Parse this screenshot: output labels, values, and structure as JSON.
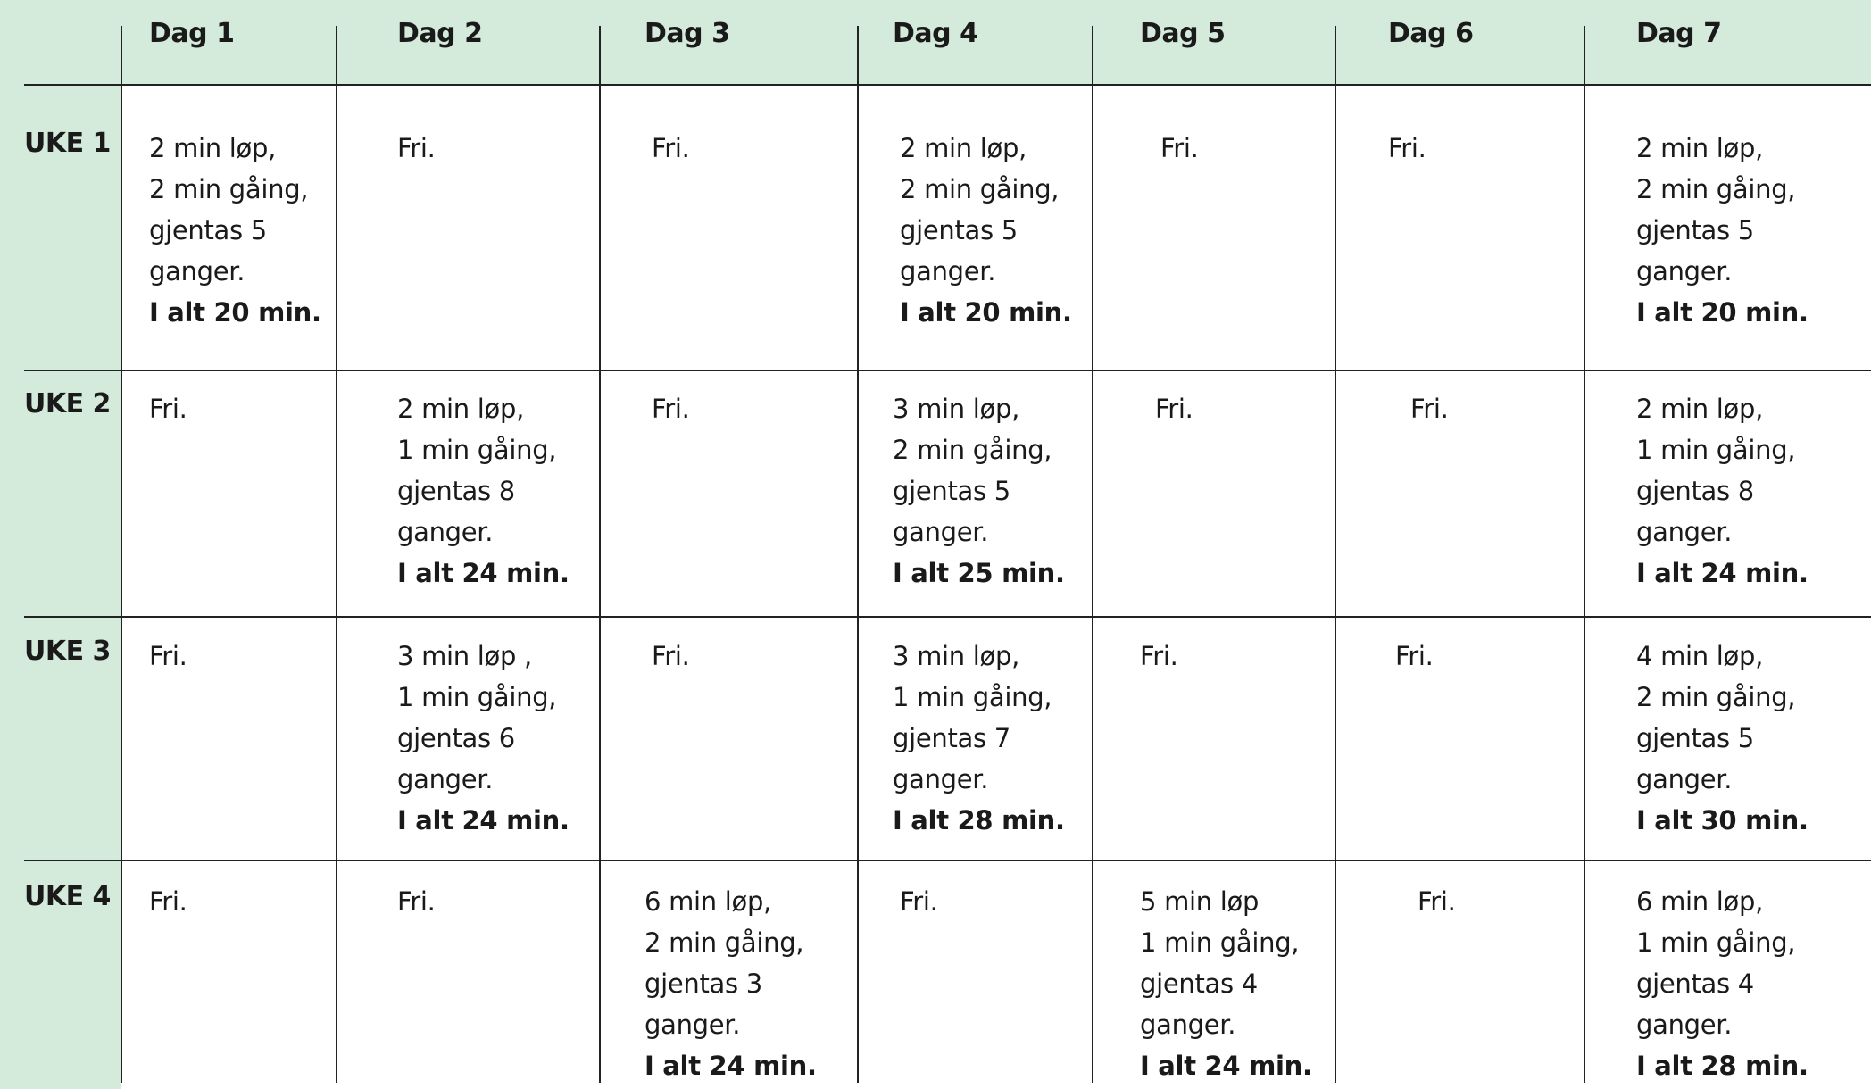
{
  "days": [
    "Dag 1",
    "Dag 2",
    "Dag 3",
    "Dag 4",
    "Dag 5",
    "Dag 6",
    "Dag 7"
  ],
  "weeks": [
    {
      "label": "UKE 1",
      "cells": [
        {
          "lines": [
            "2 min løp,",
            "2 min gåing,",
            "gjentas 5",
            "ganger."
          ],
          "total": "I alt 20 min."
        },
        {
          "lines": [
            "Fri."
          ]
        },
        {
          "lines": [
            "Fri."
          ]
        },
        {
          "lines": [
            "2 min løp,",
            "2 min gåing,",
            "gjentas 5",
            "ganger."
          ],
          "total": "I alt 20 min."
        },
        {
          "lines": [
            "Fri."
          ]
        },
        {
          "lines": [
            "Fri."
          ]
        },
        {
          "lines": [
            "2 min løp,",
            "2 min gåing,",
            "gjentas 5",
            "ganger."
          ],
          "total": "I alt 20 min."
        }
      ]
    },
    {
      "label": "UKE 2",
      "cells": [
        {
          "lines": [
            "Fri."
          ]
        },
        {
          "lines": [
            "2 min løp,",
            "1 min gåing,",
            "gjentas 8",
            "ganger."
          ],
          "total": "I alt 24 min."
        },
        {
          "lines": [
            "Fri."
          ]
        },
        {
          "lines": [
            "3 min løp,",
            "2 min gåing,",
            "gjentas 5",
            "ganger."
          ],
          "total": "I alt 25 min."
        },
        {
          "lines": [
            "Fri."
          ]
        },
        {
          "lines": [
            "Fri."
          ]
        },
        {
          "lines": [
            "2 min løp,",
            "1 min gåing,",
            "gjentas 8",
            "ganger."
          ],
          "total": "I alt 24 min."
        }
      ]
    },
    {
      "label": "UKE 3",
      "cells": [
        {
          "lines": [
            "Fri."
          ]
        },
        {
          "lines": [
            "3 min løp ,",
            "1 min gåing,",
            "gjentas 6",
            "ganger."
          ],
          "total": "I alt 24 min."
        },
        {
          "lines": [
            "Fri."
          ]
        },
        {
          "lines": [
            "3 min løp,",
            "1 min gåing,",
            "gjentas 7",
            "ganger."
          ],
          "total": "I alt 28 min."
        },
        {
          "lines": [
            "Fri."
          ]
        },
        {
          "lines": [
            "Fri."
          ]
        },
        {
          "lines": [
            "4 min løp,",
            "2 min gåing,",
            "gjentas 5",
            "ganger."
          ],
          "total": "I alt 30 min."
        }
      ]
    },
    {
      "label": "UKE 4",
      "cells": [
        {
          "lines": [
            "Fri."
          ]
        },
        {
          "lines": [
            "Fri."
          ]
        },
        {
          "lines": [
            "6 min løp,",
            "2 min gåing,",
            "gjentas 3",
            "ganger."
          ],
          "total": "I alt 24 min."
        },
        {
          "lines": [
            "Fri."
          ]
        },
        {
          "lines": [
            "5 min løp",
            "1 min gåing,",
            "gjentas 4",
            "ganger."
          ],
          "total": "I alt 24 min."
        },
        {
          "lines": [
            "Fri."
          ]
        },
        {
          "lines": [
            "6 min løp,",
            "1 min gåing,",
            "gjentas 4",
            "ganger."
          ],
          "total": "I alt 28 min."
        }
      ]
    }
  ],
  "colors": {
    "header_background": "#d4eadb",
    "grid_lines": "#222222"
  }
}
